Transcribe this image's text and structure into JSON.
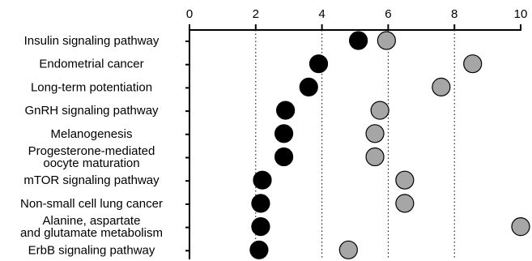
{
  "chart_data": {
    "type": "scatter",
    "title": "",
    "xlabel": "",
    "ylabel": "",
    "xlim": [
      0,
      10
    ],
    "xticks": [
      "0",
      "2",
      "4",
      "6",
      "8",
      "10"
    ],
    "x_axis_position": "top",
    "grid": "vertical dotted lines at x = 2, 4, 6, 8",
    "legend": "none",
    "categories": [
      [
        "Insulin signaling pathway"
      ],
      [
        "Endometrial cancer"
      ],
      [
        "Long-term potentiation"
      ],
      [
        "GnRH signaling pathway"
      ],
      [
        "Melanogenesis"
      ],
      [
        "Progesterone-mediated",
        "oocyte maturation"
      ],
      [
        "mTOR signaling pathway"
      ],
      [
        "Non-small cell lung cancer"
      ],
      [
        "Alanine, aspartate",
        "and glutamate metabolism"
      ],
      [
        "ErbB signaling pathway"
      ]
    ],
    "series": [
      {
        "color": "#000000",
        "values": [
          5.1,
          3.9,
          3.6,
          2.9,
          2.85,
          2.85,
          2.2,
          2.15,
          2.15,
          2.1
        ]
      },
      {
        "color": "#a6a6a6",
        "values": [
          5.95,
          8.55,
          7.6,
          5.75,
          5.6,
          5.6,
          6.5,
          6.5,
          10.0,
          4.8
        ]
      }
    ]
  }
}
